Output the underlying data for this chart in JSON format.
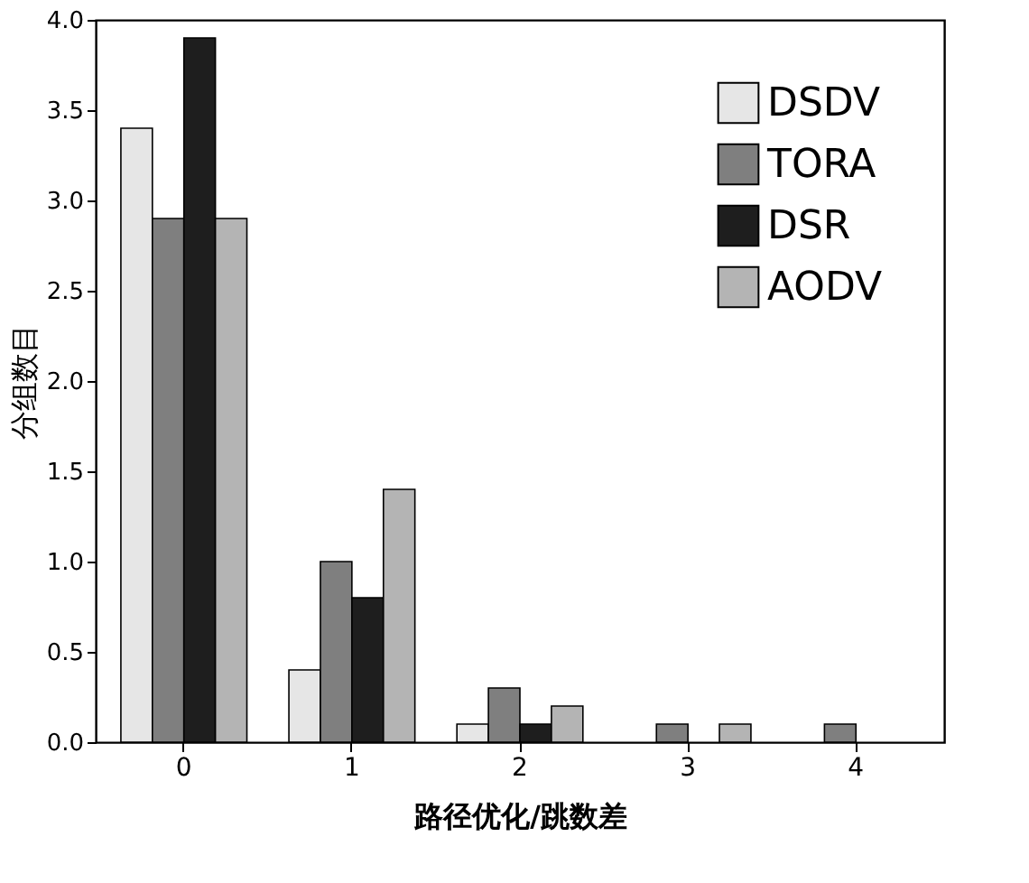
{
  "chart_data": {
    "type": "bar",
    "xlabel": "路径优化/跳数差",
    "ylabel": "分组数目",
    "categories": [
      "0",
      "1",
      "2",
      "3",
      "4"
    ],
    "series": [
      {
        "name": "DSDV",
        "color": "#e6e6e6",
        "values": [
          3.4,
          0.4,
          0.1,
          null,
          null
        ]
      },
      {
        "name": "TORA",
        "color": "#7f7f7f",
        "values": [
          2.9,
          1.0,
          0.3,
          0.1,
          0.1
        ]
      },
      {
        "name": "DSR",
        "color": "#1e1e1e",
        "values": [
          3.9,
          0.8,
          0.1,
          null,
          null
        ]
      },
      {
        "name": "AODV",
        "color": "#b4b4b4",
        "values": [
          2.9,
          1.4,
          0.2,
          0.1,
          null
        ]
      }
    ],
    "ylim": [
      0,
      4
    ],
    "yticks": [
      {
        "value": 0,
        "label": "0.0"
      },
      {
        "value": 0.5,
        "label": "0.5"
      },
      {
        "value": 1,
        "label": "1.0"
      },
      {
        "value": 1.5,
        "label": "1.5"
      },
      {
        "value": 2,
        "label": "2.0"
      },
      {
        "value": 2.5,
        "label": "2.5"
      },
      {
        "value": 3,
        "label": "3.0"
      },
      {
        "value": 3.5,
        "label": "3.5"
      },
      {
        "value": 4,
        "label": "4.0"
      }
    ],
    "legend": "top right",
    "grid": false
  }
}
